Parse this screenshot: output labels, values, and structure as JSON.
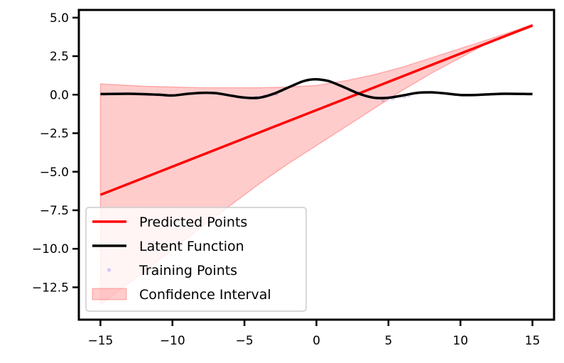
{
  "chart_data": {
    "type": "line",
    "title": "",
    "xlabel": "",
    "ylabel": "",
    "xlim": [
      -16.5,
      16.5
    ],
    "ylim": [
      -14.6,
      5.5
    ],
    "xticks": [
      -15,
      -10,
      -5,
      0,
      5,
      10,
      15
    ],
    "xtick_labels": [
      "−15",
      "−10",
      "−5",
      "0",
      "5",
      "10",
      "15"
    ],
    "yticks": [
      5.0,
      2.5,
      0.0,
      -2.5,
      -5.0,
      -7.5,
      -10.0,
      -12.5
    ],
    "ytick_labels": [
      "5.0",
      "2.5",
      "0.0",
      "−2.5",
      "−5.0",
      "−7.5",
      "−10.0",
      "−12.5"
    ],
    "grid": false,
    "legend_position": "lower-left",
    "colors": {
      "predicted": "#ff0000",
      "latent": "#000000",
      "training": "#0000ff",
      "confidence": "#ff0000"
    },
    "series": [
      {
        "name": "Predicted Points",
        "kind": "line",
        "x": [
          -15,
          15
        ],
        "y": [
          -6.5,
          4.5
        ]
      },
      {
        "name": "Latent Function",
        "kind": "line",
        "x": [
          -15,
          -13,
          -11,
          -10,
          -9,
          -8,
          -7,
          -6,
          -5,
          -4,
          -3,
          -2,
          -1,
          -0.5,
          0,
          0.5,
          1,
          2,
          3,
          4,
          5,
          6,
          7,
          8,
          9,
          10,
          11,
          13,
          15
        ],
        "y": [
          0.04,
          0.06,
          0.0,
          -0.05,
          0.05,
          0.12,
          0.1,
          -0.05,
          -0.19,
          -0.2,
          0.05,
          0.45,
          0.85,
          0.97,
          1.0,
          0.95,
          0.84,
          0.45,
          0.05,
          -0.2,
          -0.2,
          -0.05,
          0.12,
          0.15,
          0.08,
          -0.02,
          -0.02,
          0.06,
          0.04
        ]
      },
      {
        "name": "Training Points",
        "kind": "scatter",
        "x": [
          -4.2,
          -3.6,
          -2.8,
          4.6,
          5.3,
          6.1,
          6.4
        ],
        "y": [
          -0.18,
          -0.1,
          0.05,
          -0.35,
          -0.25,
          -0.12,
          -0.05
        ]
      },
      {
        "name": "Confidence Interval",
        "kind": "band",
        "x": [
          -15,
          -14.99,
          -12,
          -8,
          -4,
          -2,
          0,
          2,
          4,
          6,
          8,
          10,
          12,
          15
        ],
        "lower": [
          -13.6,
          -13.6,
          -11.5,
          -8.6,
          -5.8,
          -4.5,
          -3.3,
          -2.1,
          -0.9,
          0.3,
          1.4,
          2.4,
          3.4,
          4.4
        ],
        "upper": [
          0.0,
          0.7,
          0.55,
          0.45,
          0.45,
          0.5,
          0.6,
          0.9,
          1.3,
          1.8,
          2.4,
          3.0,
          3.6,
          4.55
        ]
      }
    ]
  }
}
